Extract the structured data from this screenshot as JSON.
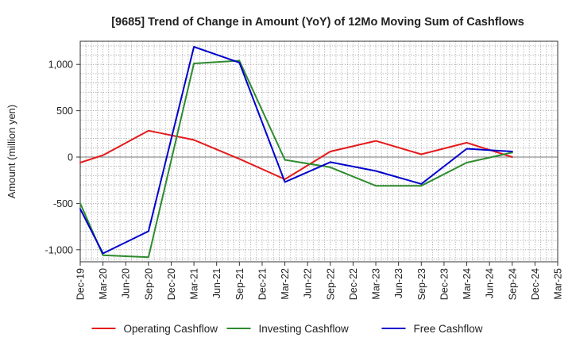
{
  "chart_data": {
    "type": "line",
    "title": "[9685]  Trend of Change in Amount (YoY) of 12Mo Moving Sum of Cashflows",
    "xlabel": "",
    "ylabel": "Amount (million yen)",
    "ylim": [
      -1130,
      1250
    ],
    "yticks": [
      1000,
      500,
      0,
      -500,
      -1000
    ],
    "ytick_labels": [
      "1,000",
      "500",
      "0",
      "-500",
      "-1,000"
    ],
    "categories": [
      "Dec-19",
      "Mar-20",
      "Jun-20",
      "Sep-20",
      "Dec-20",
      "Mar-21",
      "Jun-21",
      "Sep-21",
      "Dec-21",
      "Mar-22",
      "Jun-22",
      "Sep-22",
      "Dec-22",
      "Mar-23",
      "Jun-23",
      "Sep-23",
      "Dec-23",
      "Mar-24",
      "Jun-24",
      "Sep-24",
      "Dec-24",
      "Mar-25"
    ],
    "series": [
      {
        "name": "Operating Cashflow",
        "color": "#e41a1c",
        "values": [
          -60,
          20,
          null,
          285,
          null,
          185,
          null,
          -20,
          null,
          -240,
          null,
          60,
          null,
          175,
          null,
          30,
          null,
          155,
          null,
          0,
          null,
          null
        ]
      },
      {
        "name": "Investing Cashflow",
        "color": "#2e8b2e",
        "values": [
          -500,
          -1060,
          null,
          -1080,
          null,
          1010,
          null,
          1040,
          null,
          -30,
          null,
          -110,
          null,
          -310,
          null,
          -310,
          null,
          -60,
          null,
          50,
          null,
          null
        ]
      },
      {
        "name": "Free Cashflow",
        "color": "#0000cc",
        "values": [
          -560,
          -1040,
          null,
          -800,
          null,
          1190,
          null,
          1020,
          null,
          -270,
          null,
          -55,
          null,
          -150,
          null,
          -290,
          null,
          90,
          null,
          60,
          null,
          null
        ]
      }
    ],
    "grid": true,
    "legend_position": "bottom"
  }
}
